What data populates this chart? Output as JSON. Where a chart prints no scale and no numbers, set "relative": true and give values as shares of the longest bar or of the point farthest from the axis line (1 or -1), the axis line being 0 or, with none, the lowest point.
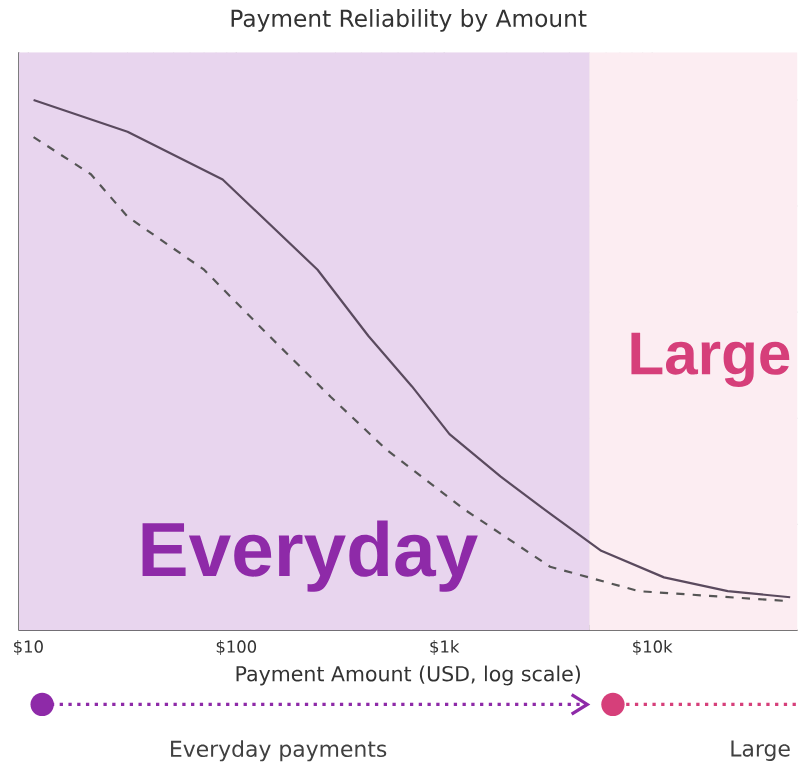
{
  "chart_data": {
    "type": "line",
    "title": "Payment Reliability by Amount",
    "xlabel": "Payment Amount (USD, log scale)",
    "relative": true,
    "log": "x",
    "grid": true,
    "xlim": [
      9,
      50000
    ],
    "xticks": [
      {
        "value": 10,
        "label": "$10"
      },
      {
        "value": 100,
        "label": "$100"
      },
      {
        "value": 1000,
        "label": "$1k"
      },
      {
        "value": 10000,
        "label": "$10k"
      }
    ],
    "series": [
      {
        "color": "#5a4a5e",
        "line_style": "solid",
        "x": [
          10.6,
          30,
          86,
          246,
          432,
          700,
          1060,
          1870,
          3230,
          5690,
          11400,
          23100,
          46100
        ],
        "values": [
          1.0,
          0.94,
          0.85,
          0.68,
          0.555,
          0.46,
          0.37,
          0.29,
          0.22,
          0.15,
          0.1,
          0.074,
          0.0625
        ]
      },
      {
        "color": "#555555",
        "line_style": "dashed",
        "x": [
          10.6,
          20,
          30,
          70,
          140,
          285,
          530,
          1230,
          3230,
          8630,
          46100
        ],
        "values": [
          0.93,
          0.86,
          0.78,
          0.68,
          0.56,
          0.44,
          0.34,
          0.23,
          0.12,
          0.074,
          0.055
        ]
      }
    ],
    "bands": [
      {
        "axis": "x",
        "from": 9,
        "to": 5000,
        "label": "Everyday",
        "color": "#e8d5ee"
      },
      {
        "axis": "x",
        "from": 5000,
        "to": 50000,
        "label": "Large",
        "color": "#fcedf2"
      }
    ],
    "annotations": [
      "Everyday payments",
      "Large"
    ]
  }
}
